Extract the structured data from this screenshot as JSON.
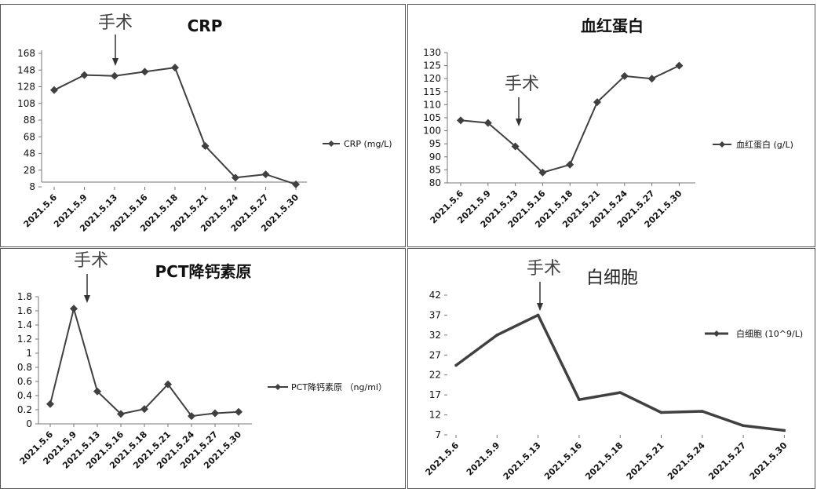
{
  "chart_data": [
    {
      "type": "line",
      "title": "CRP",
      "annotation": "手术",
      "categories": [
        "2021.5.6",
        "2021.5.9",
        "2021.5.13",
        "2021.5.16",
        "2021.5.18",
        "2021.5.21",
        "2021.5.24",
        "2021.5.27",
        "2021.5.30"
      ],
      "series": [
        {
          "name": "CRP (mg/L)",
          "values": [
            124,
            142,
            141,
            146,
            151,
            57,
            19,
            23,
            11
          ]
        }
      ],
      "yticks": [
        "168",
        "148",
        "128",
        "108",
        "88",
        "68",
        "48",
        "28",
        "8"
      ],
      "ylim": [
        8,
        168
      ],
      "legend": "right",
      "color": "#404040"
    },
    {
      "type": "line",
      "title": "血红蛋白",
      "annotation": "手术",
      "categories": [
        "2021.5.6",
        "2021.5.9",
        "2021.5.13",
        "2021.5.16",
        "2021.5.18",
        "2021.5.21",
        "2021.5.24",
        "2021.5.27",
        "2021.5.30"
      ],
      "series": [
        {
          "name": "血红蛋白 (g/L)",
          "values": [
            104,
            103,
            94,
            84,
            87,
            111,
            121,
            120,
            125
          ]
        }
      ],
      "yticks": [
        "130",
        "125",
        "120",
        "115",
        "110",
        "105",
        "100",
        "95",
        "90",
        "85",
        "80"
      ],
      "ylim": [
        80,
        130
      ],
      "legend": "right",
      "color": "#404040"
    },
    {
      "type": "line",
      "title": "PCT降钙素原",
      "annotation": "手术",
      "categories": [
        "2021.5.6",
        "2021.5.9",
        "2021.5.13",
        "2021.5.16",
        "2021.5.18",
        "2021.5.21",
        "2021.5.24",
        "2021.5.27",
        "2021.5.30"
      ],
      "series": [
        {
          "name": "PCT降钙素原 （ng/ml）",
          "values": [
            0.28,
            1.63,
            0.46,
            0.14,
            0.21,
            0.56,
            0.11,
            0.15,
            0.17
          ]
        }
      ],
      "yticks": [
        "1.8",
        "1.6",
        "1.4",
        "1.2",
        "1",
        "0.8",
        "0.6",
        "0.4",
        "0.2",
        "0"
      ],
      "ylim": [
        0,
        1.8
      ],
      "legend": "right",
      "color": "#404040"
    },
    {
      "type": "line",
      "title": "白细胞",
      "annotation": "手术",
      "categories": [
        "2021.5.6",
        "2021.5.9",
        "2021.5.13",
        "2021.5.16",
        "2021.5.18",
        "2021.5.21",
        "2021.5.24",
        "2021.5.27",
        "2021.5.30"
      ],
      "series": [
        {
          "name": "白细胞 (10^9/L)",
          "values": [
            24.4,
            32,
            37,
            15.8,
            17.6,
            12.6,
            12.9,
            9.3,
            8.1
          ]
        }
      ],
      "yticks": [
        "42",
        "37",
        "32",
        "27",
        "22",
        "17",
        "12",
        "7"
      ],
      "ylim": [
        7,
        42
      ],
      "legend": "right",
      "color": "#404040"
    }
  ]
}
